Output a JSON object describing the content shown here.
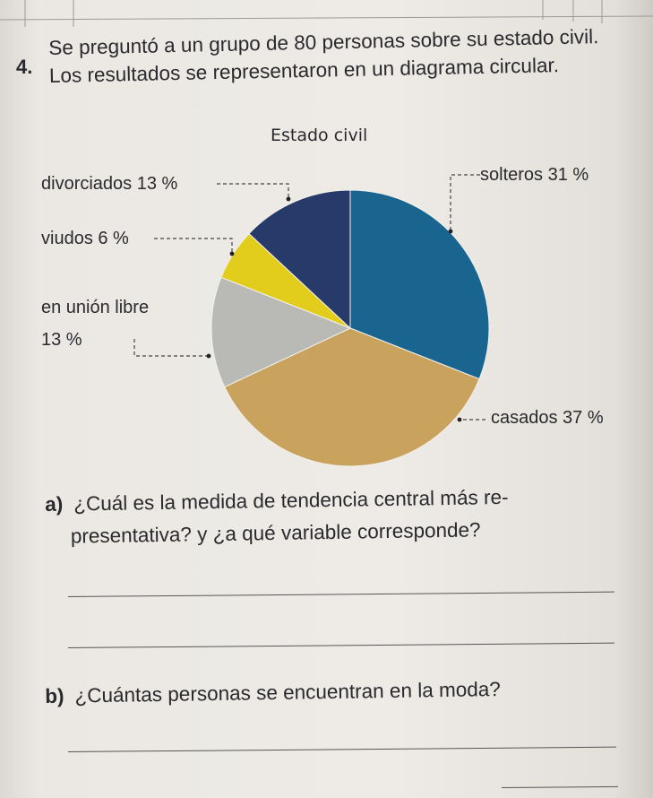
{
  "question": {
    "number": "4.",
    "text": "Se preguntó a un grupo de 80 personas sobre su estado civil. Los resultados se representaron en un diagrama circular."
  },
  "chart_data": {
    "type": "pie",
    "title": "Estado civil",
    "slices": [
      {
        "name": "solteros",
        "value": 31,
        "label": "solteros 31 %",
        "color": "#1a6590"
      },
      {
        "name": "casados",
        "value": 37,
        "label": "casados 37 %",
        "color": "#c9a25e"
      },
      {
        "name": "en unión libre",
        "value": 13,
        "label_line1": "en unión libre",
        "label_line2": "13 %",
        "color": "#b9bab5"
      },
      {
        "name": "viudos",
        "value": 6,
        "label": "viudos 6 %",
        "color": "#e2cd1c"
      },
      {
        "name": "divorciados",
        "value": 13,
        "label": "divorciados 13 %",
        "color": "#273a6a"
      }
    ]
  },
  "sub_questions": [
    {
      "letter": "a)",
      "line1": "¿Cuál es la medida de tendencia central más re-",
      "line2": "presentativa? y ¿a qué variable corresponde?"
    },
    {
      "letter": "b)",
      "line1": "¿Cuántas personas se encuentran en la moda?"
    }
  ]
}
